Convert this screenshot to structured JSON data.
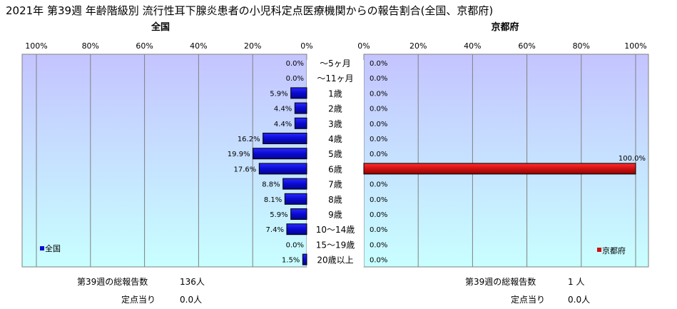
{
  "title": "2021年 第39週 年齢階級別 流行性耳下腺炎患者の小児科定点医療機関からの報告割合(全国、京都府)",
  "colors": {
    "national_bar": "#0a0ad2",
    "kyoto_bar": "#d01010",
    "plot_top": "#c4c4ff",
    "plot_bottom": "#c8ffff"
  },
  "chart_data": {
    "type": "bar",
    "orientation": "horizontal",
    "categories": [
      "～5ヶ月",
      "～11ヶ月",
      "1歳",
      "2歳",
      "3歳",
      "4歳",
      "5歳",
      "6歳",
      "7歳",
      "8歳",
      "9歳",
      "10～14歳",
      "15～19歳",
      "20歳以上"
    ],
    "panels": [
      {
        "title": "全国",
        "direction": "right-to-left",
        "xlim": [
          0,
          100
        ],
        "ticks": [
          "100%",
          "80%",
          "60%",
          "40%",
          "20%",
          "0%"
        ],
        "series": [
          {
            "name": "全国",
            "values": [
              0.0,
              0.0,
              5.9,
              4.4,
              4.4,
              16.2,
              19.9,
              17.6,
              8.8,
              8.1,
              5.9,
              7.4,
              0.0,
              1.5
            ]
          }
        ],
        "value_labels": [
          "0.0%",
          "0.0%",
          "5.9%",
          "4.4%",
          "4.4%",
          "16.2%",
          "19.9%",
          "17.6%",
          "8.8%",
          "8.1%",
          "5.9%",
          "7.4%",
          "0.0%",
          "1.5%"
        ],
        "legend_position": "bottom-left"
      },
      {
        "title": "京都府",
        "direction": "left-to-right",
        "xlim": [
          0,
          100
        ],
        "ticks": [
          "0%",
          "20%",
          "40%",
          "60%",
          "80%",
          "100%"
        ],
        "series": [
          {
            "name": "京都府",
            "values": [
              0.0,
              0.0,
              0.0,
              0.0,
              0.0,
              0.0,
              0.0,
              100.0,
              0.0,
              0.0,
              0.0,
              0.0,
              0.0,
              0.0
            ]
          }
        ],
        "value_labels": [
          "0.0%",
          "0.0%",
          "0.0%",
          "0.0%",
          "0.0%",
          "0.0%",
          "0.0%",
          "100.0%",
          "0.0%",
          "0.0%",
          "0.0%",
          "0.0%",
          "0.0%",
          "0.0%"
        ],
        "legend_position": "bottom-right"
      }
    ],
    "grid": true
  },
  "summary": {
    "national": {
      "total_label": "第39週の総報告数",
      "total_value": "136人",
      "per_label": "定点当り",
      "per_value": "0.0人"
    },
    "kyoto": {
      "total_label": "第39週の総報告数",
      "total_value": "1 人",
      "per_label": "定点当り",
      "per_value": "0.0人"
    }
  }
}
